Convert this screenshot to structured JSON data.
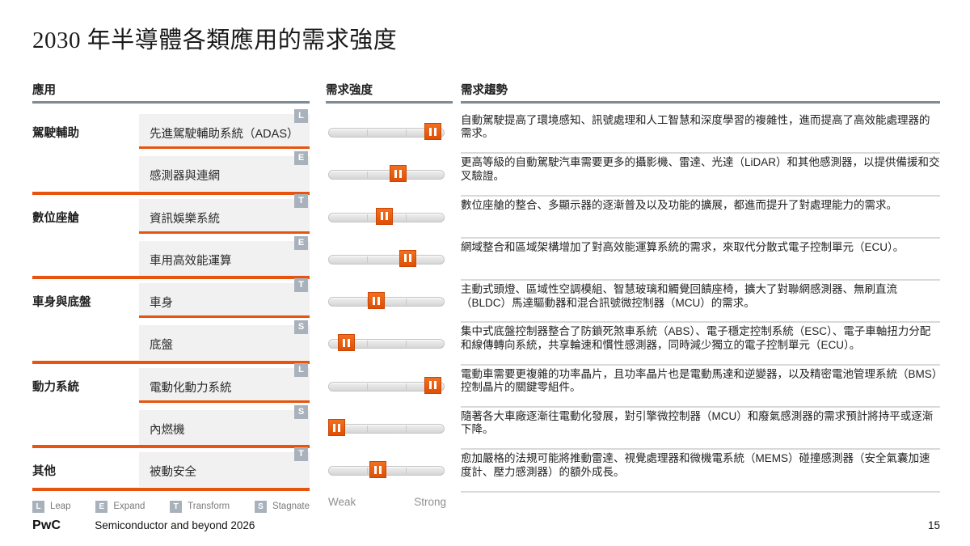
{
  "title": "2030 年半導體各類應用的需求強度",
  "columns": {
    "application": "應用",
    "intensity": "需求強度",
    "trend": "需求趨勢"
  },
  "scale": {
    "weak": "Weak",
    "strong": "Strong"
  },
  "legend": [
    {
      "code": "L",
      "label": "Leap"
    },
    {
      "code": "E",
      "label": "Expand"
    },
    {
      "code": "T",
      "label": "Transform"
    },
    {
      "code": "S",
      "label": "Stagnate"
    }
  ],
  "rows": [
    {
      "category": "駕駛輔助",
      "item": "先進駕駛輔助系統（ADAS）",
      "badge": "L",
      "intensity": 90,
      "trend": "自動駕駛提高了環境感知、訊號處理和人工智慧和深度學習的複雜性，進而提高了高效能處理器的需求。"
    },
    {
      "category": "",
      "item": "感測器與連網",
      "badge": "E",
      "intensity": 60,
      "trend": "更高等級的自動駕駛汽車需要更多的攝影機、雷達、光達（LiDAR）和其他感測器，以提供備援和交叉驗證。"
    },
    {
      "category": "數位座艙",
      "item": "資訊娛樂系統",
      "badge": "T",
      "intensity": 48,
      "trend": "數位座艙的整合、多顯示器的逐漸普及以及功能的擴展，都進而提升了對處理能力的需求。"
    },
    {
      "category": "",
      "item": "車用高效能運算",
      "badge": "E",
      "intensity": 68,
      "trend": "網域整合和區域架構增加了對高效能運算系統的需求，來取代分散式電子控制單元（ECU）。"
    },
    {
      "category": "車身與底盤",
      "item": "車身",
      "badge": "T",
      "intensity": 41,
      "trend": "主動式頭燈、區域性空調模組、智慧玻璃和觸覺回饋座椅，擴大了對聯網感測器、無刷直流（BLDC）馬達驅動器和混合訊號微控制器（MCU）的需求。"
    },
    {
      "category": "",
      "item": "底盤",
      "badge": "S",
      "intensity": 15,
      "trend": "集中式底盤控制器整合了防鎖死煞車系統（ABS）、電子穩定控制系統（ESC）、電子車軸扭力分配和線傳轉向系統，共享輪速和慣性感測器，同時減少獨立的電子控制單元（ECU）。"
    },
    {
      "category": "動力系統",
      "item": "電動化動力系統",
      "badge": "L",
      "intensity": 90,
      "trend": "電動車需要更複雜的功率晶片，且功率晶片也是電動馬達和逆變器，以及精密電池管理系統（BMS）控制晶片的關鍵零組件。"
    },
    {
      "category": "",
      "item": "內燃機",
      "badge": "S",
      "intensity": 6,
      "trend": "隨著各大車廠逐漸往電動化發展，對引擎微控制器（MCU）和廢氣感測器的需求預計將持平或逐漸下降。"
    },
    {
      "category": "其他",
      "item": "被動安全",
      "badge": "T",
      "intensity": 42,
      "trend": "愈加嚴格的法規可能將推動雷達、視覺處理器和微機電系統（MEMS）碰撞感測器（安全氣囊加速度計、壓力感測器）的額外成長。"
    }
  ],
  "footer": {
    "brand": "PwC",
    "doc": "Semiconductor and beyond 2026",
    "page": "15"
  },
  "colors": {
    "accent_orange": "#E8540D",
    "badge_gray": "#A9B2BC",
    "header_rule": "#7E8B96",
    "row_divider": "#D9D9D9",
    "item_bg": "#F1F1F1"
  }
}
